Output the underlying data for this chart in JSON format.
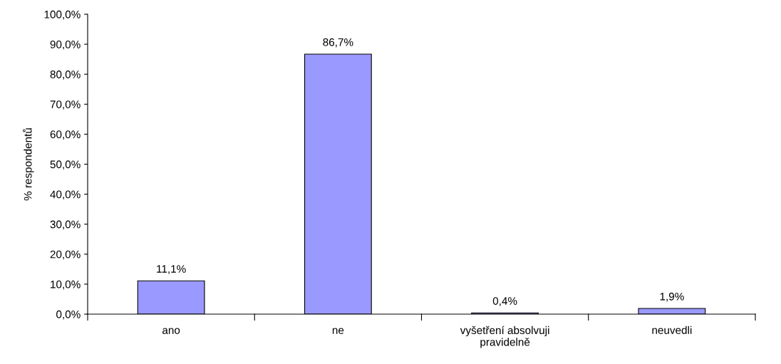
{
  "chart_data": {
    "type": "bar",
    "ylabel": "% respondentů",
    "categories": [
      "ano",
      "ne",
      "vyšetření absolvuji\npravidelně",
      "neuvedli"
    ],
    "values": [
      11.1,
      86.7,
      0.4,
      1.9
    ],
    "value_labels": [
      "11,1%",
      "86,7%",
      "0,4%",
      "1,9%"
    ],
    "color": "#9999ff",
    "ylim": [
      0,
      100
    ],
    "yticks": [
      {
        "value": 0,
        "label": "0,0%"
      },
      {
        "value": 10,
        "label": "10,0%"
      },
      {
        "value": 20,
        "label": "20,0%"
      },
      {
        "value": 30,
        "label": "30,0%"
      },
      {
        "value": 40,
        "label": "40,0%"
      },
      {
        "value": 50,
        "label": "50,0%"
      },
      {
        "value": 60,
        "label": "60,0%"
      },
      {
        "value": 70,
        "label": "70,0%"
      },
      {
        "value": 80,
        "label": "80,0%"
      },
      {
        "value": 90,
        "label": "90,0%"
      },
      {
        "value": 100,
        "label": "100,0%"
      }
    ],
    "grid": false,
    "legend": false
  }
}
